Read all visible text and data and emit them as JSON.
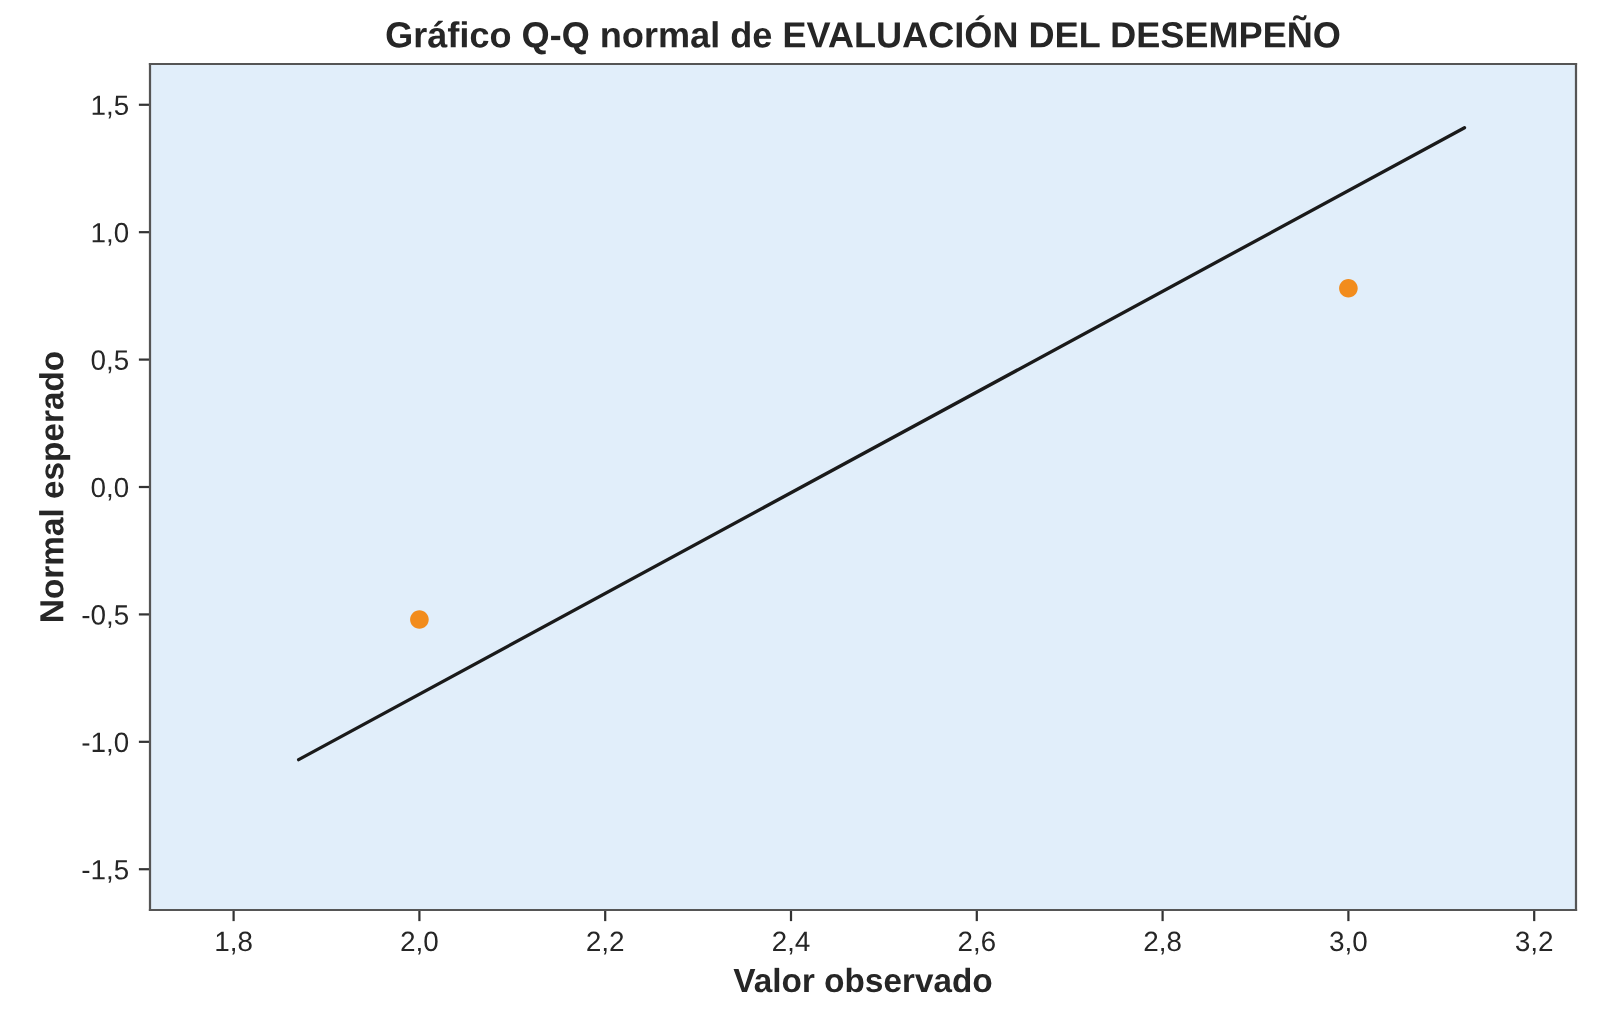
{
  "chart_data": {
    "type": "scatter",
    "title": "Gráfico Q-Q normal de EVALUACIÓN DEL DESEMPEÑO",
    "xlabel": "Valor observado",
    "ylabel": "Normal esperado",
    "series": [
      {
        "color": "#f28c1c",
        "x": [
          2.0,
          3.0
        ],
        "values": [
          -0.52,
          0.78
        ],
        "marker": "circle"
      },
      {
        "type": "line",
        "color": "#1a1a1a",
        "x": [
          1.87,
          3.125
        ],
        "values": [
          -1.07,
          1.41
        ],
        "marker": "none",
        "line_style": "solid"
      }
    ],
    "xlim": [
      1.71,
      3.245
    ],
    "ylim": [
      -1.66,
      1.66
    ],
    "xticks": [
      {
        "value": 1.8,
        "label": "1,8"
      },
      {
        "value": 2.0,
        "label": "2,0"
      },
      {
        "value": 2.2,
        "label": "2,2"
      },
      {
        "value": 2.4,
        "label": "2,4"
      },
      {
        "value": 2.6,
        "label": "2,6"
      },
      {
        "value": 2.8,
        "label": "2,8"
      },
      {
        "value": 3.0,
        "label": "3,0"
      },
      {
        "value": 3.2,
        "label": "3,2"
      }
    ],
    "yticks": [
      {
        "value": -1.5,
        "label": "-1,5"
      },
      {
        "value": -1.0,
        "label": "-1,0"
      },
      {
        "value": -0.5,
        "label": "-0,5"
      },
      {
        "value": 0.0,
        "label": "0,0"
      },
      {
        "value": 0.5,
        "label": "0,5"
      },
      {
        "value": 1.0,
        "label": "1,0"
      },
      {
        "value": 1.5,
        "label": "1,5"
      }
    ],
    "grid": false,
    "legend": false
  }
}
